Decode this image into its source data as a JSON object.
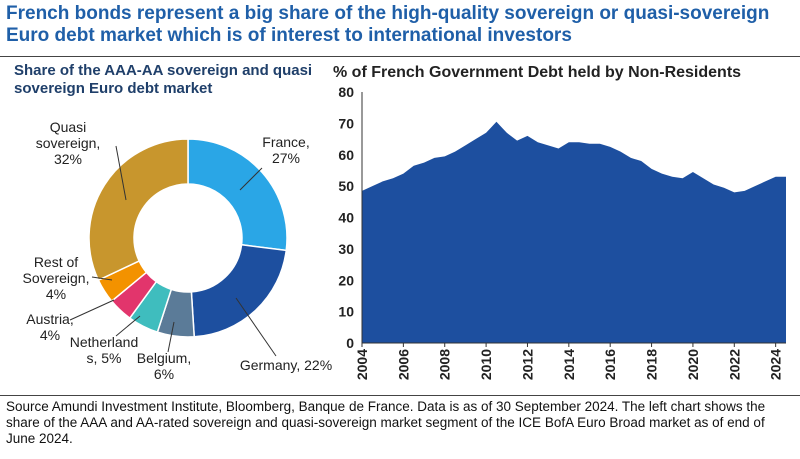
{
  "title": "French bonds represent a big share of the high-quality sovereign or quasi-sovereign Euro debt market which is of interest to international investors",
  "footnote": "Source Amundi Investment Institute, Bloomberg, Banque de France. Data is as of 30 September 2024. The left chart shows the share of the AAA and AA-rated sovereign and quasi-sovereign market segment of the ICE BofA Euro Broad market as of end of June 2024.",
  "chart_data": [
    {
      "type": "pie",
      "title": "Share of the AAA-AA sovereign and quasi sovereign Euro debt market",
      "categories": [
        "France, 27%",
        "Germany, 22%",
        "Belgium, 6%",
        "Netherland s, 5%",
        "Austria, 4%",
        "Rest of Sovereign, 4%",
        "Quasi sovereign, 32%"
      ],
      "values": [
        27,
        22,
        6,
        5,
        4,
        4,
        32
      ],
      "colors": [
        "#2aa6e6",
        "#1d4f9f",
        "#5b7b98",
        "#3fbdbe",
        "#e2356c",
        "#f39200",
        "#c8962d"
      ]
    },
    {
      "type": "area",
      "title": "% of French Government Debt held by Non-Residents",
      "x": [
        2004,
        2004.5,
        2005,
        2005.5,
        2006,
        2006.5,
        2007,
        2007.5,
        2008,
        2008.5,
        2009,
        2009.5,
        2010,
        2010.5,
        2011,
        2011.5,
        2012,
        2012.5,
        2013,
        2013.5,
        2014,
        2014.5,
        2015,
        2015.5,
        2016,
        2016.5,
        2017,
        2017.5,
        2018,
        2018.5,
        2019,
        2019.5,
        2020,
        2020.5,
        2021,
        2021.5,
        2022,
        2022.5,
        2023,
        2023.5,
        2024,
        2024.5
      ],
      "values": [
        48.5,
        50,
        51.5,
        52.5,
        54,
        56.5,
        57.5,
        59,
        59.5,
        61,
        63,
        65,
        67,
        70.5,
        67,
        64.5,
        66,
        64,
        63,
        62,
        64,
        64,
        63.5,
        63.5,
        62.5,
        61,
        59,
        58,
        55.5,
        54,
        53,
        52.5,
        54.5,
        52.5,
        50.5,
        49.5,
        48,
        48.5,
        50,
        51.5,
        53,
        53
      ],
      "color": "#1d4f9f",
      "xlim": [
        2004,
        2024.5
      ],
      "xticks": [
        2004,
        2006,
        2008,
        2010,
        2012,
        2014,
        2016,
        2018,
        2020,
        2022,
        2024
      ],
      "ylim": [
        0,
        80
      ],
      "yticks": [
        0,
        10,
        20,
        30,
        40,
        50,
        60,
        70,
        80
      ]
    }
  ]
}
